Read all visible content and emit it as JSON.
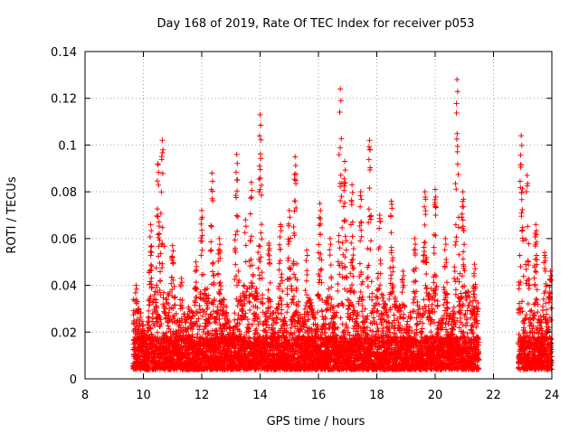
{
  "chart_data": {
    "type": "scatter",
    "title": "Day 168 of 2019, Rate Of TEC Index for receiver p053",
    "xlabel": "GPS time / hours",
    "ylabel": "ROTI / TECUs",
    "xlim": [
      8,
      24
    ],
    "ylim": [
      0,
      0.14
    ],
    "xticks": [
      8,
      10,
      12,
      14,
      16,
      18,
      20,
      22,
      24
    ],
    "yticks": [
      0,
      0.02,
      0.04,
      0.06,
      0.08,
      0.1,
      0.12,
      0.14
    ],
    "xtick_labels": [
      "8",
      "10",
      "12",
      "14",
      "16",
      "18",
      "20",
      "22",
      "24"
    ],
    "ytick_labels": [
      "0",
      "0.02",
      "0.04",
      "0.06",
      "0.08",
      "0.1",
      "0.12",
      "0.14"
    ],
    "grid": true,
    "marker": "+",
    "marker_color": "#ff0000",
    "segments": [
      {
        "start": 9.65,
        "end": 21.5
      },
      {
        "start": 22.85,
        "end": 24.0
      }
    ],
    "peaks": [
      {
        "x": 9.75,
        "y": 0.04
      },
      {
        "x": 10.25,
        "y": 0.066
      },
      {
        "x": 10.5,
        "y": 0.092
      },
      {
        "x": 10.65,
        "y": 0.102
      },
      {
        "x": 11.0,
        "y": 0.057
      },
      {
        "x": 11.3,
        "y": 0.043
      },
      {
        "x": 11.8,
        "y": 0.05
      },
      {
        "x": 12.0,
        "y": 0.072
      },
      {
        "x": 12.35,
        "y": 0.088
      },
      {
        "x": 12.6,
        "y": 0.06
      },
      {
        "x": 13.2,
        "y": 0.096
      },
      {
        "x": 13.5,
        "y": 0.068
      },
      {
        "x": 13.7,
        "y": 0.084
      },
      {
        "x": 14.0,
        "y": 0.113
      },
      {
        "x": 14.3,
        "y": 0.058
      },
      {
        "x": 14.7,
        "y": 0.066
      },
      {
        "x": 15.0,
        "y": 0.072
      },
      {
        "x": 15.2,
        "y": 0.095
      },
      {
        "x": 15.6,
        "y": 0.055
      },
      {
        "x": 16.05,
        "y": 0.075
      },
      {
        "x": 16.4,
        "y": 0.06
      },
      {
        "x": 16.75,
        "y": 0.124
      },
      {
        "x": 16.9,
        "y": 0.093
      },
      {
        "x": 17.15,
        "y": 0.083
      },
      {
        "x": 17.45,
        "y": 0.08
      },
      {
        "x": 17.75,
        "y": 0.102
      },
      {
        "x": 18.1,
        "y": 0.07
      },
      {
        "x": 18.5,
        "y": 0.076
      },
      {
        "x": 18.9,
        "y": 0.046
      },
      {
        "x": 19.3,
        "y": 0.06
      },
      {
        "x": 19.65,
        "y": 0.08
      },
      {
        "x": 20.0,
        "y": 0.081
      },
      {
        "x": 20.35,
        "y": 0.06
      },
      {
        "x": 20.75,
        "y": 0.128
      },
      {
        "x": 20.95,
        "y": 0.08
      },
      {
        "x": 21.35,
        "y": 0.049
      },
      {
        "x": 22.95,
        "y": 0.104
      },
      {
        "x": 23.15,
        "y": 0.087
      },
      {
        "x": 23.45,
        "y": 0.066
      },
      {
        "x": 23.75,
        "y": 0.054
      },
      {
        "x": 23.95,
        "y": 0.046
      }
    ]
  }
}
